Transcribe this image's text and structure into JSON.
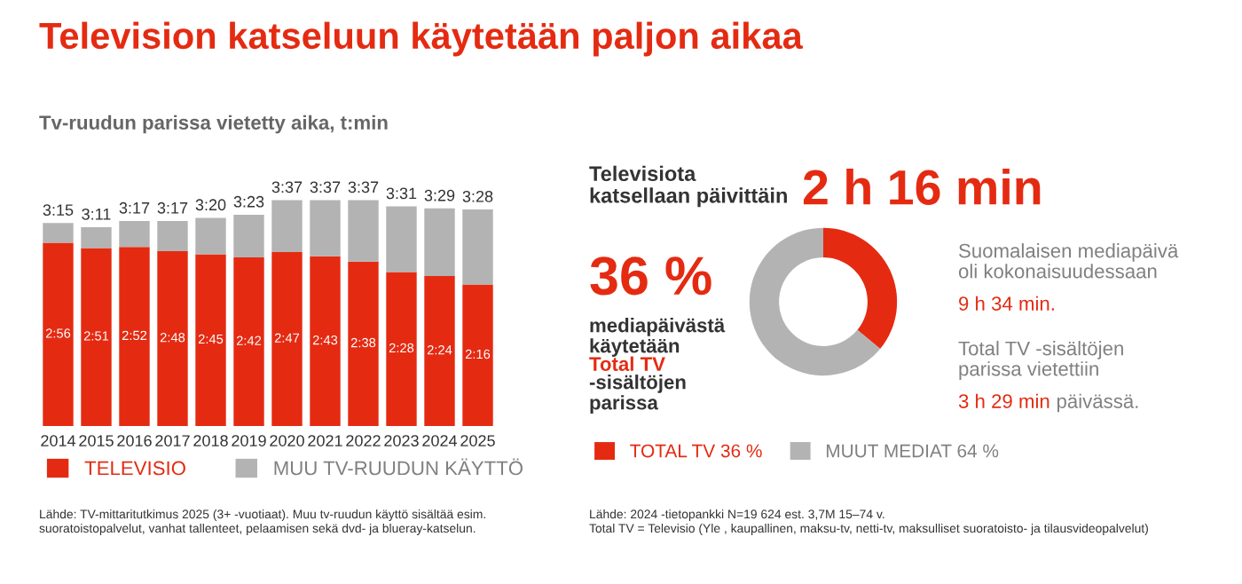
{
  "chart_data": [
    {
      "type": "bar",
      "stacked": true,
      "title": "Television katseluun käytetään paljon aikaa",
      "subtitle": "Tv-ruudun parissa vietetty aika, t:min",
      "categories": [
        "2014",
        "2015",
        "2016",
        "2017",
        "2018",
        "2019",
        "2020",
        "2021",
        "2022",
        "2023",
        "2024",
        "2025"
      ],
      "series": [
        {
          "name": "TELEVISIO",
          "color": "#e42b12",
          "values": [
            176,
            171,
            172,
            168,
            165,
            162,
            167,
            163,
            158,
            148,
            144,
            136
          ],
          "value_labels": [
            "2:56",
            "2:51",
            "2:52",
            "2:48",
            "2:45",
            "2:42",
            "2:47",
            "2:43",
            "2:38",
            "2:28",
            "2:24",
            "2:16"
          ]
        },
        {
          "name": "MUU TV-RUUDUN KÄYTTÖ",
          "color": "#b3b3b3",
          "values": [
            19,
            20,
            25,
            29,
            35,
            41,
            50,
            54,
            59,
            63,
            65,
            72
          ]
        }
      ],
      "totals": [
        "3:15",
        "3:11",
        "3:17",
        "3:17",
        "3:20",
        "3:23",
        "3:37",
        "3:37",
        "3:37",
        "3:31",
        "3:29",
        "3:28"
      ],
      "legend": "bottom",
      "grid": false,
      "annotations": [
        "Lähde: TV-mittaritutkimus 2025 (3+ -vuotiaat). Muu tv-ruudun käyttö sisältää esim.\nsuoratoistopalvelut, vanhat tallenteet, pelaamisen sekä dvd- ja blueray-katselun."
      ]
    },
    {
      "type": "donut",
      "categories": [
        "TOTAL TV 36 %",
        "MUUT MEDIAT 64 %"
      ],
      "values": [
        36,
        64
      ],
      "colors": [
        "#e42b12",
        "#b3b3b3"
      ],
      "legend": "bottom",
      "annotations": [
        "Televisiota\nkatsellaan päivittäin",
        "2 h 16 min",
        "36 %",
        "mediapäivästä\nkäytetään",
        "Total TV",
        "-sisältöjen\nparissa",
        "Suomalaisen mediapäivä\noli kokonaisuudessaan",
        "9 h 34 min.",
        "Total TV -sisältöjen\nparissa vietettiin",
        "3 h 29 min",
        "päivässä.",
        "Lähde: 2024 -tietopankki N=19 624 est. 3,7M 15–74 v.\nTotal TV = Televisio (Yle , kaupallinen, maksu-tv, netti-tv, maksulliset suoratoisto- ja tilausvideopalvelut)"
      ]
    }
  ]
}
